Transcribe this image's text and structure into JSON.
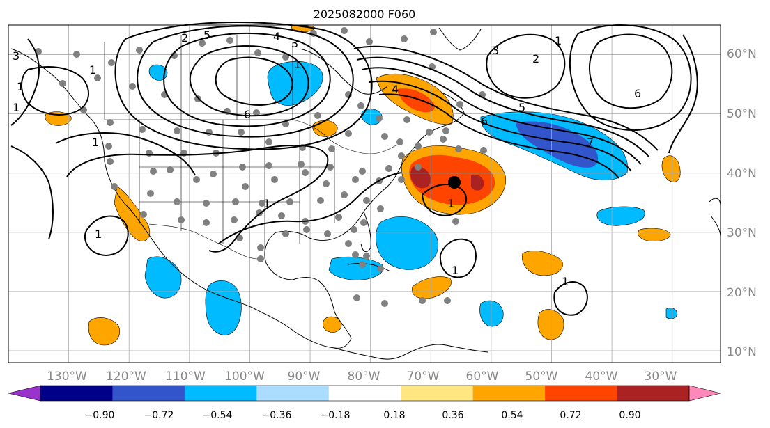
{
  "map": {
    "title": "2025082000 F060",
    "lon_labels": [
      "130°W",
      "120°W",
      "110°W",
      "100°W",
      "90°W",
      "80°W",
      "70°W",
      "60°W",
      "50°W",
      "40°W",
      "30°W"
    ],
    "lat_labels": [
      "60°N",
      "50°N",
      "40°N",
      "30°N",
      "20°N",
      "10°N"
    ],
    "extent": {
      "lon": [
        -140,
        -22
      ],
      "lat": [
        8,
        65
      ]
    },
    "contour_labels": [
      "1",
      "1",
      "1",
      "1",
      "1",
      "1",
      "2",
      "3",
      "4",
      "5",
      "6",
      "4",
      "3",
      "2",
      "3",
      "5",
      "6",
      "7",
      "1",
      "1",
      "1",
      "1",
      "1",
      "6"
    ]
  },
  "colorbar": {
    "tick_labels": [
      "−0.90",
      "−0.72",
      "−0.54",
      "−0.36",
      "−0.18",
      "0.18",
      "0.36",
      "0.54",
      "0.72",
      "0.90"
    ],
    "colors": [
      "#9933cc",
      "#000088",
      "#3355cc",
      "#00bbff",
      "#aaddff",
      "#ffffff",
      "#ffe680",
      "#ffa500",
      "#ff4400",
      "#aa2222",
      "#ff88bb"
    ]
  },
  "colors": {
    "land_line": "#000000",
    "grid": "#aaaaaa",
    "station_dot": "#808080",
    "contour": "#000000"
  }
}
